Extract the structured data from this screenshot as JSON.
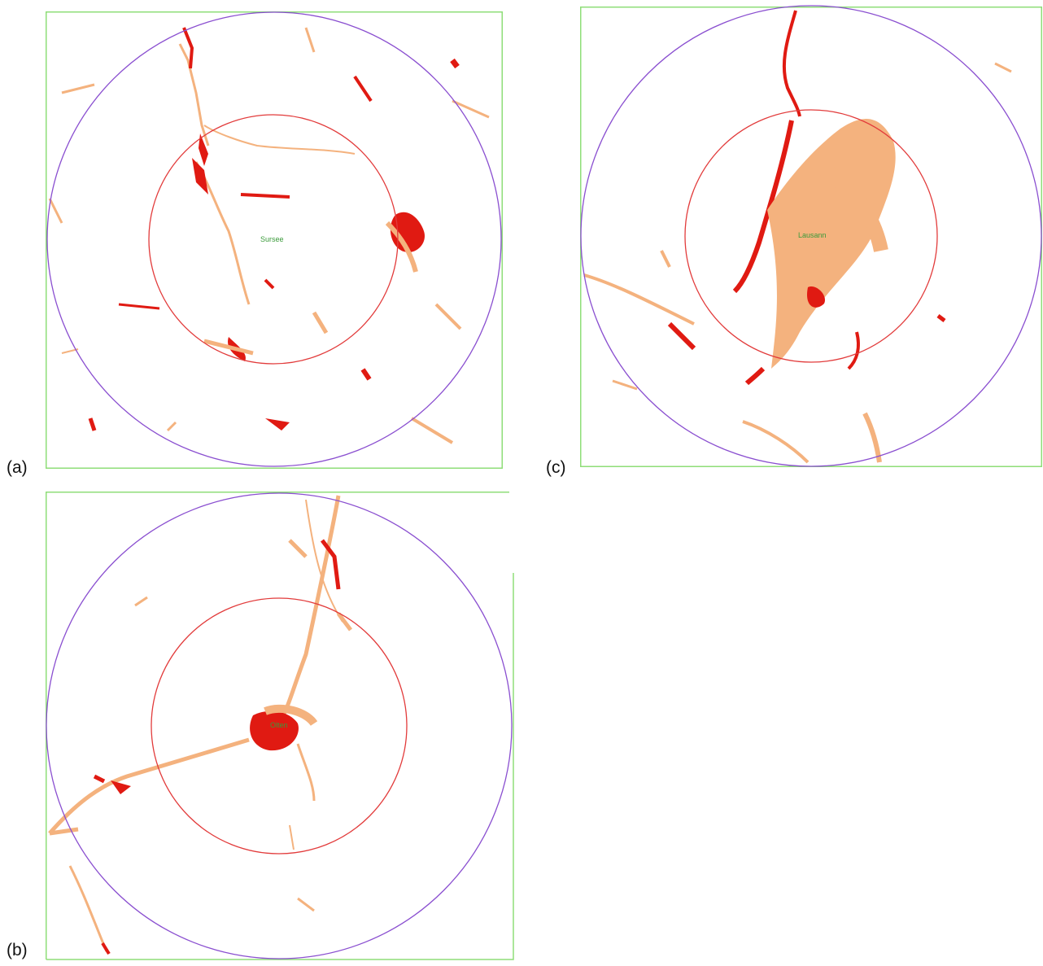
{
  "colors": {
    "frame": "#8fde78",
    "outer_circle": "#8a4fd0",
    "inner_circle": "#e23b3b",
    "urban_dense": "#e01a12",
    "urban_sparse": "#f4b27e"
  },
  "panels": [
    {
      "id": "a",
      "label": "(a)",
      "city": "Sursee"
    },
    {
      "id": "b",
      "label": "(b)",
      "city": "Olten"
    },
    {
      "id": "c",
      "label": "(c)",
      "city": "Lausann"
    }
  ]
}
